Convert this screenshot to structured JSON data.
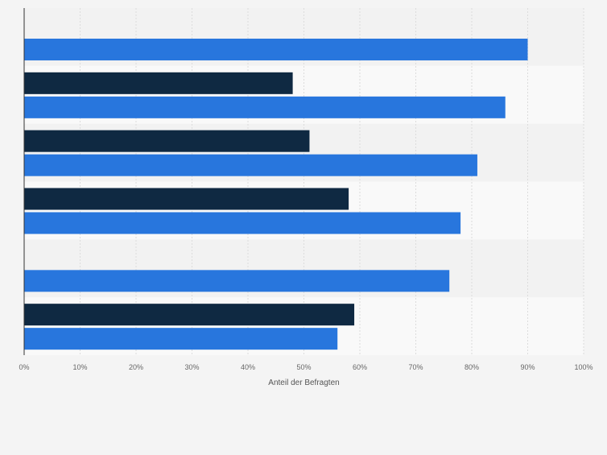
{
  "chart_data": {
    "type": "bar",
    "orientation": "horizontal",
    "categories": [
      "",
      "",
      "",
      "",
      "",
      ""
    ],
    "series": [
      {
        "color": "#0f2942",
        "values": [
          null,
          48,
          51,
          58,
          null,
          59
        ]
      },
      {
        "color": "#2876dd",
        "values": [
          90,
          86,
          81,
          78,
          76,
          56
        ]
      }
    ],
    "xlabel": "Anteil der Befragten",
    "ylabel": "",
    "xlim": [
      0,
      100
    ],
    "x_ticks": [
      0,
      10,
      20,
      30,
      40,
      50,
      60,
      70,
      80,
      90,
      100
    ],
    "x_tick_labels": [
      "0%",
      "10%",
      "20%",
      "30%",
      "40%",
      "50%",
      "60%",
      "70%",
      "80%",
      "90%",
      "100%"
    ],
    "grid": true,
    "legend": "none"
  },
  "colors": {
    "background": "#f4f4f4",
    "band_light": "#f9f9f9",
    "band_dark": "#f2f2f2",
    "gridline": "#dcdcdc",
    "axis": "#333333",
    "tick_text": "#666666"
  }
}
